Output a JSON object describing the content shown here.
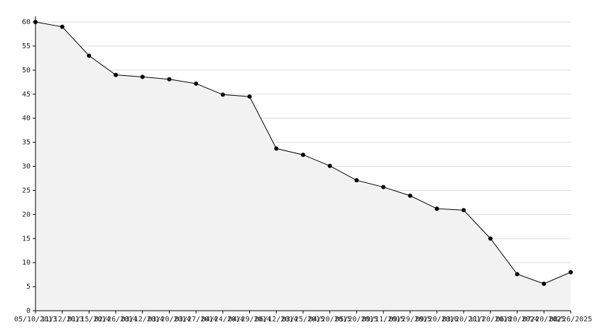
{
  "chart_data": {
    "type": "area",
    "x": [
      "05/10/2013",
      "11/12/2013",
      "01/15/2014",
      "02/26/2014",
      "03/12/2014",
      "03/20/2014",
      "03/27/2014",
      "04/24/2014",
      "04/29/2014",
      "06/12/2014",
      "03/25/2015",
      "04/20/2015",
      "05/20/2015",
      "09/11/2015",
      "09/29/2015",
      "09/20/2016",
      "03/20/2017",
      "11/20/2018",
      "06/20/2024",
      "07/20/2025",
      "08/26/2025"
    ],
    "values": [
      60,
      59,
      53,
      49,
      48.6,
      48.1,
      47.2,
      44.9,
      44.5,
      33.7,
      32.4,
      30.1,
      27.1,
      25.7,
      23.9,
      21.2,
      20.9,
      15,
      7.6,
      5.6,
      8
    ],
    "color": "#000000",
    "fill": "#f2f2f2",
    "ylim": [
      0,
      60
    ],
    "yticks": [
      0,
      5,
      10,
      15,
      20,
      25,
      30,
      35,
      40,
      45,
      50,
      55,
      60
    ],
    "grid": true
  }
}
